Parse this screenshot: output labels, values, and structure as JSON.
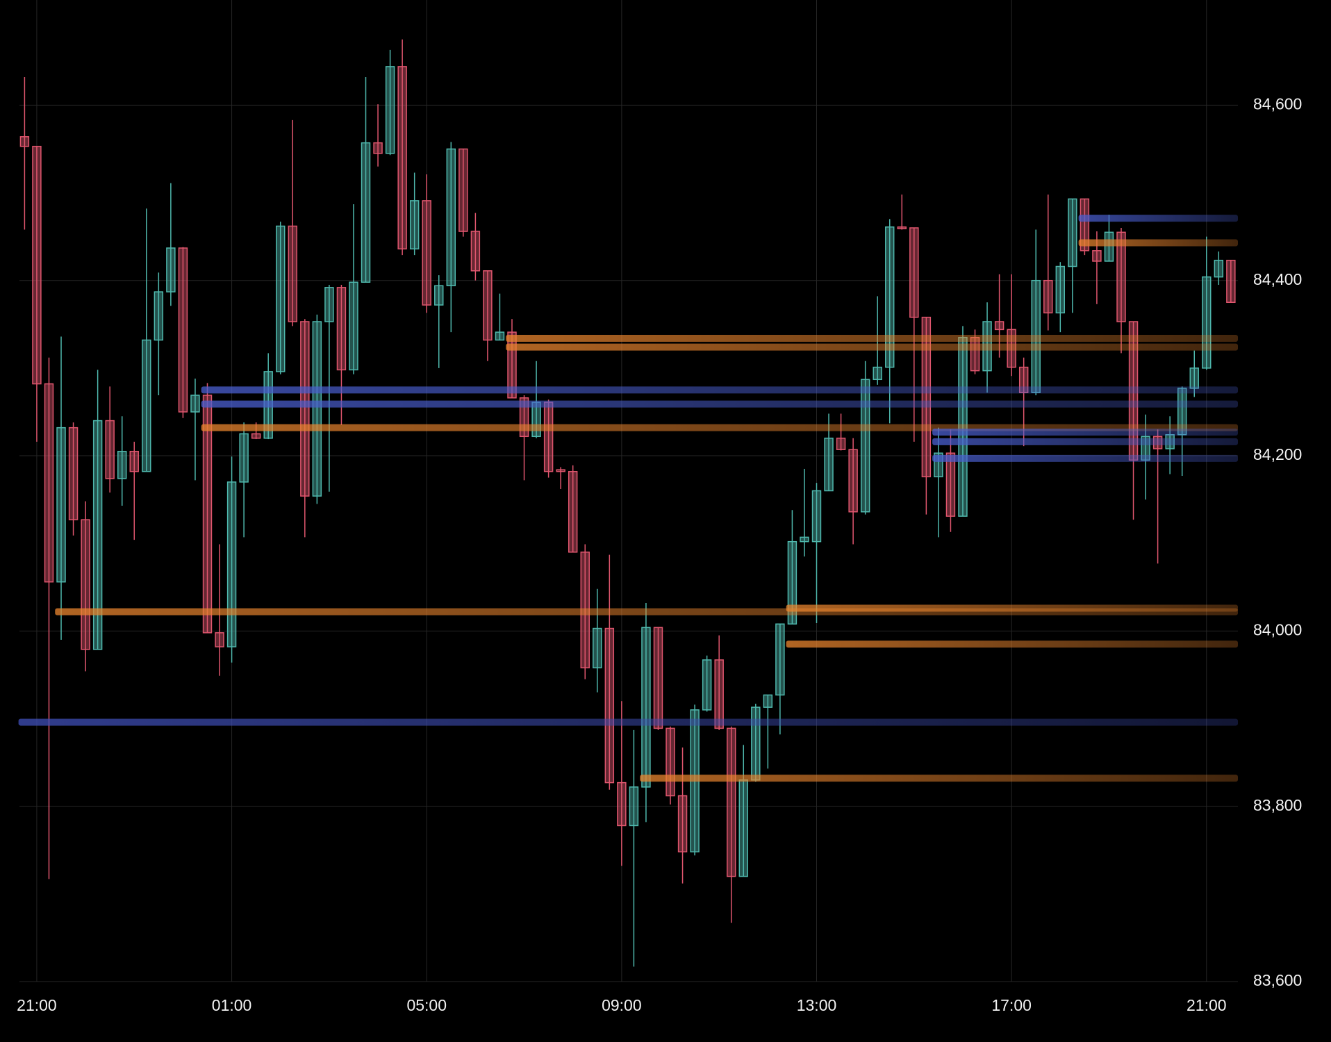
{
  "chart_data": {
    "type": "candlestick",
    "categories": [
      null,
      "21:00",
      null,
      null,
      null,
      null,
      null,
      null,
      null,
      null,
      null,
      null,
      null,
      null,
      null,
      null,
      null,
      "01:00",
      null,
      null,
      null,
      null,
      null,
      null,
      null,
      null,
      null,
      null,
      null,
      null,
      null,
      null,
      null,
      "05:00",
      null,
      null,
      null,
      null,
      null,
      null,
      null,
      null,
      null,
      null,
      null,
      null,
      null,
      null,
      null,
      "09:00",
      null,
      null,
      null,
      null,
      null,
      null,
      null,
      null,
      null,
      null,
      null,
      null,
      null,
      null,
      null,
      "13:00",
      null,
      null,
      null,
      null,
      null,
      null,
      null,
      null,
      null,
      null,
      null,
      null,
      null,
      null,
      null,
      "17:00",
      null,
      null,
      null,
      null,
      null,
      null,
      null,
      null,
      null,
      null,
      null,
      null,
      null,
      null,
      null,
      "21:00",
      null,
      null
    ],
    "open": [
      84564,
      84553,
      84282,
      84056,
      84232,
      84127,
      83979,
      84240,
      84174,
      84205,
      84182,
      84332,
      84387,
      84437,
      84250,
      84269,
      83998,
      83982,
      84170,
      84225,
      84220,
      84296,
      84462,
      84353,
      84154,
      84353,
      84392,
      84298,
      84398,
      84557,
      84545,
      84644,
      84436,
      84491,
      84372,
      84394,
      84550,
      84456,
      84411,
      84332,
      84341,
      84266,
      84222,
      84261,
      84184,
      84182,
      84090,
      83958,
      84003,
      83827,
      83778,
      83822,
      84004,
      83889,
      83812,
      83748,
      83910,
      83967,
      83889,
      83720,
      83830,
      83913,
      83927,
      84008,
      84102,
      84102,
      84160,
      84220,
      84207,
      84136,
      84287,
      84301,
      84461,
      84460,
      84358,
      84176,
      84203,
      84131,
      84335,
      84297,
      84353,
      84344,
      84301,
      84272,
      84400,
      84363,
      84416,
      84493,
      84434,
      84422,
      84455,
      84353,
      84195,
      84222,
      84208,
      84224,
      84277,
      84300,
      84404,
      84423
    ],
    "high": [
      84632,
      84553,
      84312,
      84336,
      84238,
      84148,
      84298,
      84279,
      84245,
      84216,
      84482,
      84409,
      84511,
      84438,
      84288,
      84283,
      84099,
      84199,
      84238,
      84238,
      84317,
      84467,
      84583,
      84356,
      84361,
      84395,
      84395,
      84487,
      84632,
      84601,
      84663,
      84675,
      84523,
      84521,
      84406,
      84558,
      84550,
      84477,
      84411,
      84385,
      84356,
      84269,
      84308,
      84264,
      84187,
      84189,
      84099,
      84048,
      84087,
      83920,
      83887,
      84032,
      84004,
      83891,
      83867,
      83916,
      83972,
      83995,
      83891,
      83870,
      83917,
      83927,
      84008,
      84138,
      84185,
      84169,
      84248,
      84248,
      84220,
      84308,
      84382,
      84470,
      84498,
      84460,
      84358,
      84232,
      84230,
      84348,
      84344,
      84375,
      84407,
      84407,
      84312,
      84458,
      84498,
      84421,
      84493,
      84493,
      84456,
      84475,
      84460,
      84353,
      84247,
      84230,
      84245,
      84279,
      84320,
      84450,
      84433,
      84423
    ],
    "low": [
      84458,
      84216,
      83717,
      83990,
      84109,
      83954,
      83979,
      84158,
      84143,
      84104,
      84182,
      84269,
      84371,
      84243,
      84172,
      83998,
      83949,
      83964,
      84107,
      84219,
      84219,
      84293,
      84348,
      84107,
      84145,
      84159,
      84235,
      84293,
      84398,
      84530,
      84543,
      84429,
      84429,
      84363,
      84300,
      84341,
      84450,
      84400,
      84308,
      84332,
      84266,
      84172,
      84220,
      84175,
      84162,
      84090,
      83945,
      83930,
      83819,
      83732,
      83617,
      83782,
      83887,
      83802,
      83712,
      83744,
      83908,
      83887,
      83667,
      83720,
      83828,
      83843,
      83882,
      84008,
      84085,
      84009,
      84160,
      84206,
      84099,
      84133,
      84281,
      84237,
      84458,
      84216,
      84133,
      84107,
      84113,
      84131,
      84293,
      84272,
      84312,
      84291,
      84211,
      84269,
      84343,
      84341,
      84363,
      84429,
      84373,
      84422,
      84317,
      84127,
      84150,
      84077,
      84179,
      84177,
      84267,
      84298,
      84395,
      84375
    ],
    "close": [
      84553,
      84282,
      84056,
      84232,
      84127,
      83979,
      84240,
      84174,
      84205,
      84182,
      84332,
      84387,
      84437,
      84250,
      84269,
      83998,
      83982,
      84170,
      84225,
      84220,
      84296,
      84462,
      84353,
      84154,
      84353,
      84392,
      84298,
      84398,
      84557,
      84545,
      84644,
      84436,
      84491,
      84372,
      84394,
      84550,
      84456,
      84411,
      84332,
      84341,
      84266,
      84222,
      84261,
      84182,
      84182,
      84090,
      83958,
      84003,
      83827,
      83778,
      83822,
      84004,
      83889,
      83812,
      83748,
      83910,
      83967,
      83889,
      83720,
      83830,
      83913,
      83927,
      84008,
      84102,
      84107,
      84160,
      84220,
      84207,
      84136,
      84287,
      84301,
      84461,
      84459,
      84358,
      84176,
      84203,
      84131,
      84335,
      84297,
      84353,
      84344,
      84301,
      84272,
      84400,
      84363,
      84416,
      84493,
      84434,
      84422,
      84455,
      84353,
      84195,
      84222,
      84208,
      84224,
      84277,
      84300,
      84404,
      84423,
      84375
    ],
    "up_color": "#4fb8ad",
    "down_color": "#e0566e",
    "ylim": [
      83600,
      84720
    ],
    "yticks": [
      {
        "value": 83600,
        "label": "83,600"
      },
      {
        "value": 83800,
        "label": "83,800"
      },
      {
        "value": 84000,
        "label": "84,000"
      },
      {
        "value": 84200,
        "label": "84,200"
      },
      {
        "value": 84400,
        "label": "84,400"
      },
      {
        "value": 84600,
        "label": "84,600"
      }
    ],
    "grid": true,
    "levels": [
      {
        "value": 83896,
        "start": 0,
        "color": "#3f4fb8"
      },
      {
        "value": 84022,
        "start": 3,
        "color": "#e8842e"
      },
      {
        "value": 84275,
        "start": 15,
        "color": "#4a5fd0"
      },
      {
        "value": 84259,
        "start": 15,
        "color": "#4a5fd0"
      },
      {
        "value": 84232,
        "start": 15,
        "color": "#e8842e"
      },
      {
        "value": 84334,
        "start": 40,
        "color": "#e8842e"
      },
      {
        "value": 84324,
        "start": 40,
        "color": "#e8842e"
      },
      {
        "value": 83832,
        "start": 51,
        "color": "#e8842e"
      },
      {
        "value": 84026,
        "start": 63,
        "color": "#e8842e"
      },
      {
        "value": 83985,
        "start": 63,
        "color": "#e8842e"
      },
      {
        "value": 84227,
        "start": 75,
        "color": "#4a5fd0"
      },
      {
        "value": 84216,
        "start": 75,
        "color": "#4a5fd0"
      },
      {
        "value": 84197,
        "start": 75,
        "color": "#4a5fd0"
      },
      {
        "value": 84471,
        "start": 87,
        "color": "#4a5fd0"
      },
      {
        "value": 84443,
        "start": 87,
        "color": "#e8842e"
      }
    ]
  }
}
